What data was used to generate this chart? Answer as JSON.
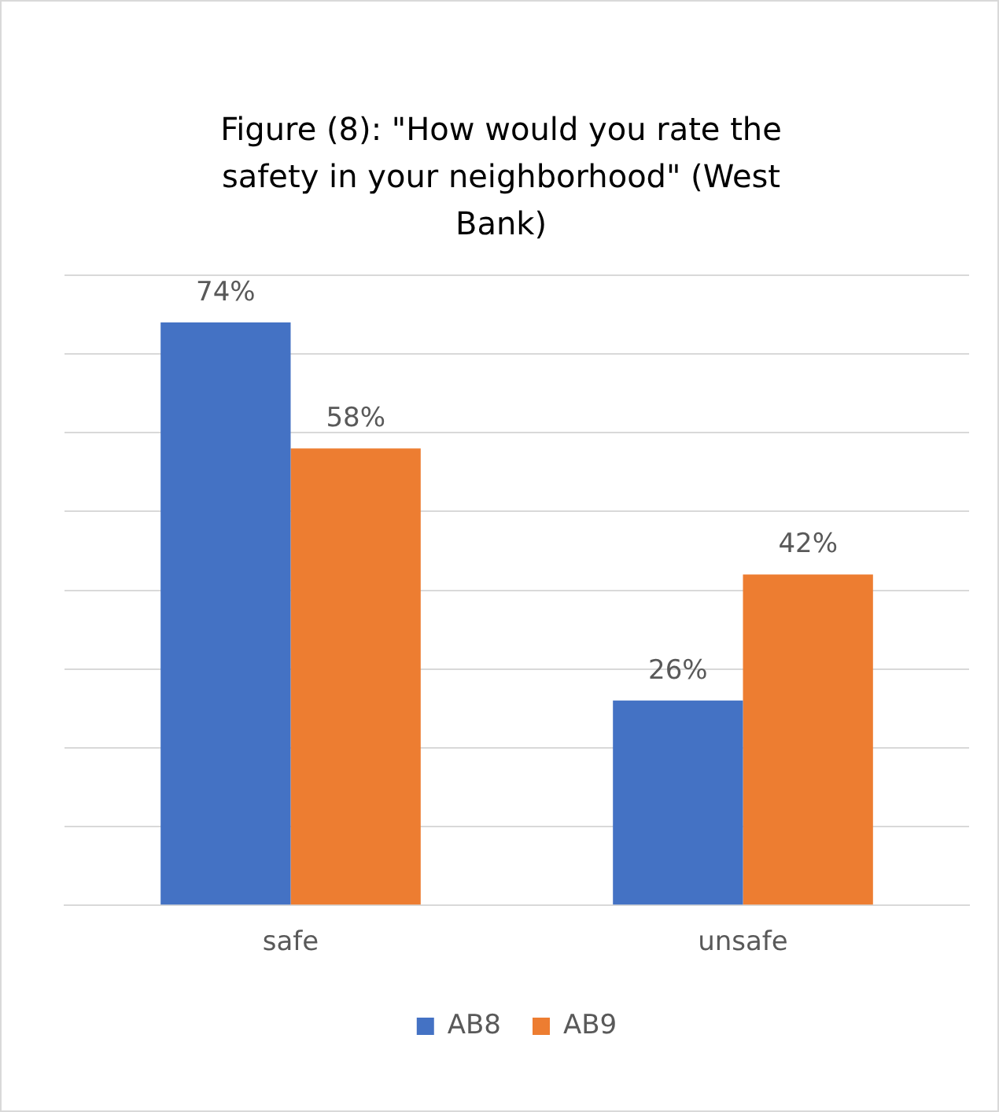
{
  "chart_data": {
    "type": "bar",
    "title": "Figure (8): \"How would you rate the safety in your neighborhood\" (West Bank)",
    "categories": [
      "safe",
      "unsafe"
    ],
    "series": [
      {
        "name": "AB8",
        "color": "#4472c4",
        "values": [
          74,
          26
        ],
        "value_labels": [
          "74%",
          "26%"
        ]
      },
      {
        "name": "AB9",
        "color": "#ed7d31",
        "values": [
          58,
          42
        ],
        "value_labels": [
          "58%",
          "42%"
        ]
      }
    ],
    "ylim": [
      0,
      80
    ],
    "yticks": [
      {
        "value": 0,
        "label": null
      },
      {
        "value": 10,
        "label": null
      },
      {
        "value": 20,
        "label": null
      },
      {
        "value": 30,
        "label": null
      },
      {
        "value": 40,
        "label": null
      },
      {
        "value": 50,
        "label": null
      },
      {
        "value": 60,
        "label": null
      },
      {
        "value": 70,
        "label": null
      },
      {
        "value": 80,
        "label": null
      }
    ],
    "tick_labels": "x",
    "grid": "y",
    "legend": "bottom"
  }
}
